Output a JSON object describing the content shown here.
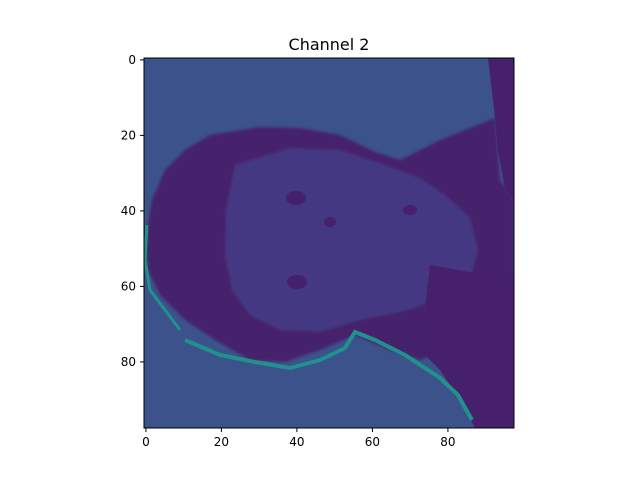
{
  "figure": {
    "background": "#ffffff"
  },
  "chart_data": {
    "type": "heatmap",
    "title": "Channel 2",
    "xlabel": "",
    "ylabel": "",
    "xlim": [
      -0.5,
      97.5
    ],
    "ylim": [
      97.5,
      -0.5
    ],
    "x_ticks": [
      0,
      20,
      40,
      60,
      80
    ],
    "y_ticks": [
      0,
      20,
      40,
      60,
      80
    ],
    "x_tick_labels": [
      "0",
      "20",
      "40",
      "60",
      "80"
    ],
    "y_tick_labels": [
      "0",
      "20",
      "40",
      "60",
      "80"
    ],
    "colormap": "viridis",
    "grid": false,
    "image_rows": 98,
    "image_cols": 98,
    "colors": {
      "background_level": "#3b528b",
      "face_level": "#443983",
      "dark_level": "#46206c",
      "edge_highlight": "#21918c",
      "axes_edge": "#000000"
    }
  }
}
